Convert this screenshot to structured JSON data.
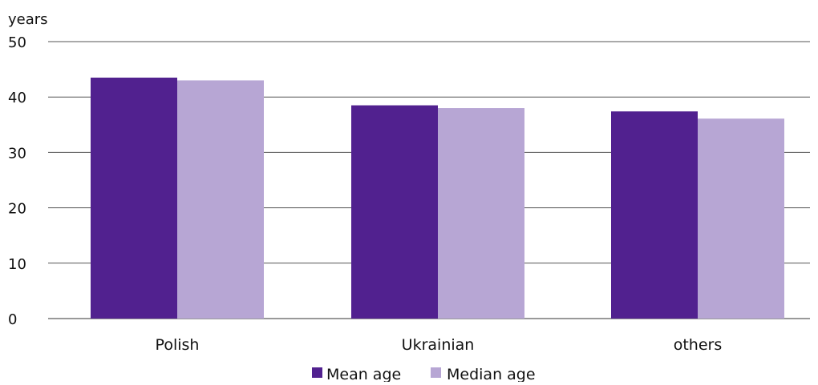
{
  "chart_data": {
    "type": "bar",
    "unit_label": "years",
    "categories": [
      "Polish",
      "Ukrainian",
      "others"
    ],
    "series": [
      {
        "name": "Mean age",
        "values": [
          43.5,
          38.5,
          37.4
        ],
        "color": "#51218f"
      },
      {
        "name": "Median age",
        "values": [
          43.0,
          38.0,
          36.1
        ],
        "color": "#b7a6d4"
      }
    ],
    "ylim": [
      0,
      50
    ],
    "yticks": [
      "0",
      "10",
      "20",
      "30",
      "40",
      "50"
    ],
    "grid": true,
    "legend_position": "bottom"
  }
}
